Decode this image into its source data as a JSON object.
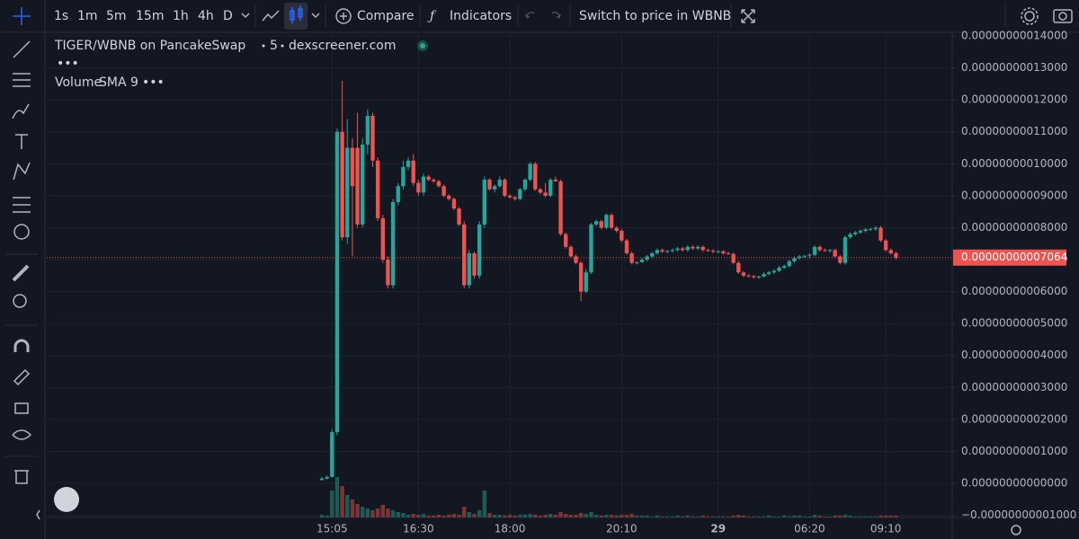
{
  "ui": {
    "timeframes": [
      "1s",
      "1m",
      "5m",
      "15m",
      "1h",
      "4h",
      "D"
    ],
    "compare": "Compare",
    "indicators": "Indicators",
    "switch": "Switch to price in WBNB",
    "volume_label": "Volume",
    "volume_sma": "SMA 9"
  },
  "chart_data": {
    "type": "candlestick",
    "title": "TIGER/WBNB on PancakeSwap",
    "interval": "5",
    "source": "dexscreener.com",
    "up_color": "#26a69a",
    "down_color": "#ef5350",
    "volume_up_color": "#1d5c56",
    "volume_down_color": "#7b3535",
    "grid": true,
    "ylim": [
      -1.068e-11,
      1.4085e-10
    ],
    "yticks": [
      {
        "value": -1e-11,
        "label": "−0.00000000001000"
      },
      {
        "value": 0,
        "label": "0.00000000000000"
      },
      {
        "value": 1e-11,
        "label": "0.00000000001000"
      },
      {
        "value": 2e-11,
        "label": "0.00000000002000"
      },
      {
        "value": 3e-11,
        "label": "0.00000000003000"
      },
      {
        "value": 4e-11,
        "label": "0.00000000004000"
      },
      {
        "value": 5e-11,
        "label": "0.00000000005000"
      },
      {
        "value": 6e-11,
        "label": "0.00000000006000"
      },
      {
        "value": 7e-11,
        "label": "0.00000000007000"
      },
      {
        "value": 8e-11,
        "label": "0.00000000008000"
      },
      {
        "value": 9e-11,
        "label": "0.00000000009000"
      },
      {
        "value": 1e-10,
        "label": "0.00000000010000"
      },
      {
        "value": 1.1e-10,
        "label": "0.00000000011000"
      },
      {
        "value": 1.2e-10,
        "label": "0.00000000012000"
      },
      {
        "value": 1.3e-10,
        "label": "0.00000000013000"
      },
      {
        "value": 1.4e-10,
        "label": "0.00000000014000"
      }
    ],
    "last_price": {
      "value": 7.064e-11,
      "label": "0.00000000007064"
    },
    "y2lim": [
      0,
      540
    ],
    "categories": [
      null,
      null,
      "15:05",
      null,
      null,
      null,
      null,
      null,
      null,
      null,
      null,
      null,
      null,
      null,
      null,
      null,
      null,
      null,
      null,
      "16:30",
      null,
      null,
      null,
      null,
      null,
      null,
      null,
      null,
      null,
      null,
      null,
      null,
      null,
      null,
      null,
      null,
      null,
      "18:00",
      null,
      null,
      null,
      null,
      null,
      null,
      null,
      null,
      null,
      null,
      null,
      null,
      null,
      null,
      null,
      null,
      null,
      null,
      null,
      null,
      null,
      "20:10",
      null,
      null,
      null,
      null,
      null,
      null,
      null,
      null,
      null,
      null,
      null,
      null,
      null,
      null,
      null,
      null,
      null,
      null,
      "29",
      null,
      null,
      null,
      null,
      null,
      null,
      null,
      null,
      null,
      null,
      null,
      null,
      null,
      null,
      null,
      null,
      null,
      "06:20",
      null,
      null,
      null,
      null,
      null,
      null,
      null,
      null,
      null,
      null,
      null,
      null,
      null,
      null,
      "09:10",
      null,
      null
    ],
    "ohlc": [
      [
        1e-12,
        2e-12,
        1e-12,
        1.5e-12
      ],
      [
        1.5e-12,
        2.5e-12,
        1.2e-12,
        2e-12
      ],
      [
        2e-12,
        1.7e-11,
        1.8e-12,
        1.6e-11
      ],
      [
        1.6e-11,
        1.11e-10,
        1.5e-11,
        1.1e-10
      ],
      [
        1.1e-10,
        1.26e-10,
        7.6e-11,
        7.7e-11
      ],
      [
        7.7e-11,
        1.14e-10,
        7.5e-11,
        1.05e-10
      ],
      [
        1.05e-10,
        1.08e-10,
        7.1e-11,
        9.3e-11
      ],
      [
        1.05e-10,
        1.16e-10,
        8e-11,
        8.1e-11
      ],
      [
        8.1e-11,
        1.08e-10,
        8e-11,
        1.06e-10
      ],
      [
        1.06e-10,
        1.17e-10,
        1.03e-10,
        1.15e-10
      ],
      [
        1.15e-10,
        1.16e-10,
        9.9e-11,
        1.01e-10
      ],
      [
        1.01e-10,
        1.02e-10,
        8.2e-11,
        8.3e-11
      ],
      [
        8.3e-11,
        8.4e-11,
        6.9e-11,
        7e-11
      ],
      [
        7e-11,
        7.1e-11,
        6.1e-11,
        6.2e-11
      ],
      [
        6.2e-11,
        8.9e-11,
        6.1e-11,
        8.8e-11
      ],
      [
        8.8e-11,
        9.4e-11,
        8.7e-11,
        9.3e-11
      ],
      [
        9.3e-11,
        1.01e-10,
        9.2e-11,
        9.9e-11
      ],
      [
        9.9e-11,
        1.02e-10,
        9.8e-11,
        1.01e-10
      ],
      [
        1.01e-10,
        1.03e-10,
        9.3e-11,
        9.4e-11
      ],
      [
        9.4e-11,
        9.5e-11,
        9e-11,
        9.1e-11
      ],
      [
        9.1e-11,
        9.7e-11,
        9e-11,
        9.6e-11
      ],
      [
        9.6e-11,
        9.65e-11,
        9.45e-11,
        9.5e-11
      ],
      [
        9.5e-11,
        9.55e-11,
        9.4e-11,
        9.45e-11
      ],
      [
        9.45e-11,
        9.5e-11,
        9.25e-11,
        9.3e-11
      ],
      [
        9.3e-11,
        9.35e-11,
        8.95e-11,
        9e-11
      ],
      [
        9e-11,
        9.05e-11,
        8.85e-11,
        8.9e-11
      ],
      [
        8.9e-11,
        8.95e-11,
        8.55e-11,
        8.6e-11
      ],
      [
        8.6e-11,
        8.65e-11,
        8.05e-11,
        8.1e-11
      ],
      [
        8.1e-11,
        8.2e-11,
        6.1e-11,
        6.2e-11
      ],
      [
        6.2e-11,
        7.3e-11,
        6.1e-11,
        7.2e-11
      ],
      [
        7.2e-11,
        7.25e-11,
        6.4e-11,
        6.5e-11
      ],
      [
        6.5e-11,
        8.2e-11,
        6.4e-11,
        8.1e-11
      ],
      [
        8.1e-11,
        9.6e-11,
        8e-11,
        9.5e-11
      ],
      [
        9.5e-11,
        9.55e-11,
        9.15e-11,
        9.2e-11
      ],
      [
        9.2e-11,
        9.35e-11,
        9.1e-11,
        9.3e-11
      ],
      [
        9.3e-11,
        9.6e-11,
        9.25e-11,
        9.5e-11
      ],
      [
        9.5e-11,
        9.55e-11,
        8.95e-11,
        9e-11
      ],
      [
        9e-11,
        9.05e-11,
        8.9e-11,
        8.95e-11
      ],
      [
        8.95e-11,
        9e-11,
        8.85e-11,
        8.9e-11
      ],
      [
        8.9e-11,
        9.25e-11,
        8.85e-11,
        9.2e-11
      ],
      [
        9.2e-11,
        9.55e-11,
        9.15e-11,
        9.5e-11
      ],
      [
        9.5e-11,
        1.005e-10,
        9.45e-11,
        1e-10
      ],
      [
        1e-10,
        1.005e-10,
        9.15e-11,
        9.2e-11
      ],
      [
        9.2e-11,
        9.25e-11,
        9.05e-11,
        9.1e-11
      ],
      [
        9.1e-11,
        9.4e-11,
        8.95e-11,
        9e-11
      ],
      [
        9e-11,
        9.55e-11,
        8.95e-11,
        9.5e-11
      ],
      [
        9.5e-11,
        9.6e-11,
        9.45e-11,
        9.45e-11
      ],
      [
        9.45e-11,
        9.5e-11,
        7.75e-11,
        7.8e-11
      ],
      [
        7.8e-11,
        7.85e-11,
        7.35e-11,
        7.4e-11
      ],
      [
        7.4e-11,
        7.45e-11,
        7.05e-11,
        7.1e-11
      ],
      [
        7.1e-11,
        7.15e-11,
        6.85e-11,
        6.9e-11
      ],
      [
        6.9e-11,
        6.95e-11,
        5.7e-11,
        6e-11
      ],
      [
        6e-11,
        6.7e-11,
        5.95e-11,
        6.6e-11
      ],
      [
        6.6e-11,
        8.15e-11,
        6.55e-11,
        8.1e-11
      ],
      [
        8.1e-11,
        8.25e-11,
        8.05e-11,
        8.2e-11
      ],
      [
        8.2e-11,
        8.25e-11,
        7.95e-11,
        8e-11
      ],
      [
        8e-11,
        8.45e-11,
        7.95e-11,
        8.4e-11
      ],
      [
        8.4e-11,
        8.45e-11,
        7.95e-11,
        8e-11
      ],
      [
        8e-11,
        8.05e-11,
        7.85e-11,
        7.9e-11
      ],
      [
        7.9e-11,
        7.95e-11,
        7.55e-11,
        7.6e-11
      ],
      [
        7.6e-11,
        7.65e-11,
        7.15e-11,
        7.2e-11
      ],
      [
        7.2e-11,
        7.25e-11,
        6.85e-11,
        6.9e-11
      ],
      [
        6.9e-11,
        6.95e-11,
        6.85e-11,
        6.92e-11
      ],
      [
        6.92e-11,
        7.05e-11,
        6.9e-11,
        7e-11
      ],
      [
        7e-11,
        7.15e-11,
        6.95e-11,
        7.1e-11
      ],
      [
        7.1e-11,
        7.25e-11,
        7.05e-11,
        7.2e-11
      ],
      [
        7.2e-11,
        7.35e-11,
        7.15e-11,
        7.3e-11
      ],
      [
        7.3e-11,
        7.35e-11,
        7.2e-11,
        7.25e-11
      ],
      [
        7.25e-11,
        7.3e-11,
        7.2e-11,
        7.27e-11
      ],
      [
        7.27e-11,
        7.35e-11,
        7.22e-11,
        7.3e-11
      ],
      [
        7.3e-11,
        7.4e-11,
        7.25e-11,
        7.35e-11
      ],
      [
        7.35e-11,
        7.4e-11,
        7.25e-11,
        7.3e-11
      ],
      [
        7.3e-11,
        7.45e-11,
        7.25e-11,
        7.4e-11
      ],
      [
        7.4e-11,
        7.45e-11,
        7.3e-11,
        7.35e-11
      ],
      [
        7.35e-11,
        7.45e-11,
        7.3e-11,
        7.4e-11
      ],
      [
        7.4e-11,
        7.45e-11,
        7.25e-11,
        7.3e-11
      ],
      [
        7.3e-11,
        7.35e-11,
        7.25e-11,
        7.28e-11
      ],
      [
        7.28e-11,
        7.33e-11,
        7.2e-11,
        7.25e-11
      ],
      [
        7.25e-11,
        7.3e-11,
        7.2e-11,
        7.26e-11
      ],
      [
        7.26e-11,
        7.3e-11,
        7.15e-11,
        7.2e-11
      ],
      [
        7.2e-11,
        7.25e-11,
        7.15e-11,
        7.18e-11
      ],
      [
        7.18e-11,
        7.22e-11,
        6.85e-11,
        6.9e-11
      ],
      [
        6.9e-11,
        6.95e-11,
        6.55e-11,
        6.6e-11
      ],
      [
        6.6e-11,
        6.65e-11,
        6.45e-11,
        6.5e-11
      ],
      [
        6.5e-11,
        6.55e-11,
        6.45e-11,
        6.48e-11
      ],
      [
        6.48e-11,
        6.52e-11,
        6.4e-11,
        6.45e-11
      ],
      [
        6.45e-11,
        6.5e-11,
        6.4e-11,
        6.47e-11
      ],
      [
        6.47e-11,
        6.6e-11,
        6.45e-11,
        6.55e-11
      ],
      [
        6.55e-11,
        6.65e-11,
        6.5e-11,
        6.6e-11
      ],
      [
        6.6e-11,
        6.7e-11,
        6.55e-11,
        6.65e-11
      ],
      [
        6.65e-11,
        6.8e-11,
        6.6e-11,
        6.75e-11
      ],
      [
        6.75e-11,
        6.85e-11,
        6.7e-11,
        6.8e-11
      ],
      [
        6.8e-11,
        7e-11,
        6.75e-11,
        6.95e-11
      ],
      [
        6.95e-11,
        7.1e-11,
        6.9e-11,
        7.05e-11
      ],
      [
        7.05e-11,
        7.15e-11,
        7e-11,
        7.1e-11
      ],
      [
        7.1e-11,
        7.15e-11,
        7.05e-11,
        7.12e-11
      ],
      [
        7.12e-11,
        7.2e-11,
        7.05e-11,
        7.15e-11
      ],
      [
        7.15e-11,
        7.45e-11,
        7.1e-11,
        7.4e-11
      ],
      [
        7.4e-11,
        7.45e-11,
        7.25e-11,
        7.3e-11
      ],
      [
        7.3e-11,
        7.35e-11,
        7.25e-11,
        7.28e-11
      ],
      [
        7.28e-11,
        7.33e-11,
        7.22e-11,
        7.3e-11
      ],
      [
        7.3e-11,
        7.35e-11,
        7.05e-11,
        7.1e-11
      ],
      [
        7.1e-11,
        7.15e-11,
        6.85e-11,
        6.9e-11
      ],
      [
        6.9e-11,
        7.75e-11,
        6.85e-11,
        7.7e-11
      ],
      [
        7.7e-11,
        7.85e-11,
        7.65e-11,
        7.8e-11
      ],
      [
        7.8e-11,
        7.9e-11,
        7.75e-11,
        7.85e-11
      ],
      [
        7.85e-11,
        7.95e-11,
        7.8e-11,
        7.9e-11
      ],
      [
        7.9e-11,
        7.98e-11,
        7.85e-11,
        7.95e-11
      ],
      [
        7.95e-11,
        8e-11,
        7.9e-11,
        7.96e-11
      ],
      [
        7.96e-11,
        8.05e-11,
        7.9e-11,
        8e-11
      ],
      [
        8e-11,
        8.05e-11,
        7.55e-11,
        7.6e-11
      ],
      [
        7.6e-11,
        7.65e-11,
        7.25e-11,
        7.3e-11
      ],
      [
        7.3e-11,
        7.35e-11,
        7.15e-11,
        7.2e-11
      ],
      [
        7.2e-11,
        7.25e-11,
        7e-11,
        7.064e-11
      ]
    ],
    "volume": [
      3,
      2,
      30,
      45,
      35,
      25,
      20,
      15,
      12,
      10,
      8,
      10,
      14,
      10,
      8,
      6,
      5,
      3,
      4,
      3,
      4,
      2,
      2,
      3,
      2,
      3,
      4,
      3,
      12,
      6,
      4,
      8,
      30,
      5,
      3,
      3,
      2,
      3,
      2,
      3,
      3,
      4,
      3,
      2,
      3,
      4,
      3,
      6,
      4,
      3,
      3,
      5,
      4,
      6,
      3,
      2,
      3,
      3,
      2,
      3,
      3,
      4,
      2,
      2,
      2,
      1,
      2,
      1,
      1,
      1,
      2,
      1,
      2,
      1,
      1,
      2,
      1,
      1,
      1,
      1,
      1,
      2,
      3,
      2,
      1,
      1,
      1,
      1,
      2,
      1,
      1,
      2,
      1,
      2,
      2,
      1,
      1,
      3,
      2,
      1,
      1,
      2,
      2,
      3,
      2,
      1,
      1,
      1,
      1,
      1,
      2,
      2,
      2,
      2
    ]
  }
}
